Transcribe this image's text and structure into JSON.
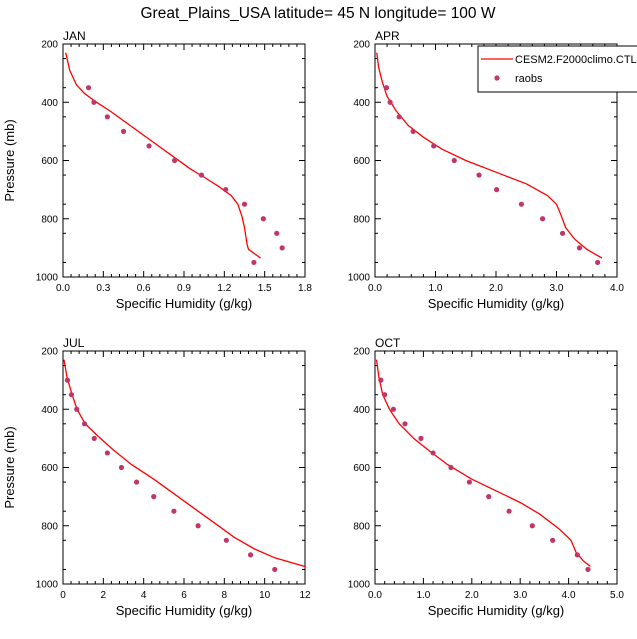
{
  "figure_title": "Great_Plains_USA  latitude= 45 N longitude= 100 W",
  "colors": {
    "model": "#ff0000",
    "obs": "#c0366a",
    "axes": "#000000"
  },
  "chart_data": [
    {
      "type": "line+scatter",
      "title": "JAN",
      "xlabel": "Specific Humidity (g/kg)",
      "ylabel": "Pressure (mb)",
      "xlim": [
        0,
        1.8
      ],
      "ylim": [
        1000,
        200
      ],
      "xticks": [
        "0.0",
        "0.3",
        "0.6",
        "0.9",
        "1.2",
        "1.5",
        "1.8"
      ],
      "yticks": [
        "200",
        "400",
        "600",
        "800",
        "1000"
      ],
      "legend": null,
      "series": [
        {
          "name": "CESM2.F2000climo.CTL",
          "kind": "line",
          "x": [
            0.02,
            0.05,
            0.1,
            0.16,
            0.25,
            0.35,
            0.5,
            0.65,
            0.8,
            0.95,
            1.06,
            1.16,
            1.25,
            1.3,
            1.33,
            1.35,
            1.36,
            1.37,
            1.38,
            1.47
          ],
          "y": [
            230,
            290,
            340,
            370,
            400,
            430,
            480,
            530,
            580,
            630,
            660,
            690,
            720,
            750,
            790,
            830,
            860,
            890,
            905,
            935
          ]
        },
        {
          "name": "raobs",
          "kind": "scatter",
          "x": [
            0.19,
            0.23,
            0.33,
            0.45,
            0.64,
            0.83,
            1.03,
            1.21,
            1.35,
            1.49,
            1.59,
            1.63,
            1.42
          ],
          "y": [
            350,
            400,
            450,
            500,
            550,
            600,
            650,
            700,
            750,
            800,
            850,
            900,
            950
          ]
        }
      ]
    },
    {
      "type": "line+scatter",
      "title": "APR",
      "xlabel": "Specific Humidity (g/kg)",
      "ylabel": "",
      "xlim": [
        0,
        4.0
      ],
      "ylim": [
        1000,
        200
      ],
      "xticks": [
        "0.0",
        "1.0",
        "2.0",
        "3.0",
        "4.0"
      ],
      "yticks": [
        "200",
        "400",
        "600",
        "800",
        "1000"
      ],
      "legend": {
        "position": "top-right",
        "entries": [
          "CESM2.F2000climo.CTL",
          "raobs"
        ]
      },
      "series": [
        {
          "name": "CESM2.F2000climo.CTL",
          "kind": "line",
          "x": [
            0.03,
            0.06,
            0.12,
            0.2,
            0.35,
            0.55,
            0.8,
            1.1,
            1.5,
            2.0,
            2.5,
            2.85,
            3.0,
            3.08,
            3.15,
            3.3,
            3.5,
            3.75
          ],
          "y": [
            230,
            280,
            330,
            380,
            430,
            480,
            520,
            560,
            600,
            640,
            680,
            720,
            750,
            790,
            830,
            870,
            905,
            935
          ]
        },
        {
          "name": "raobs",
          "kind": "scatter",
          "x": [
            0.19,
            0.25,
            0.4,
            0.63,
            0.97,
            1.31,
            1.72,
            2.01,
            2.42,
            2.77,
            3.1,
            3.38,
            3.68
          ],
          "y": [
            350,
            400,
            450,
            500,
            550,
            600,
            650,
            700,
            750,
            800,
            850,
            900,
            950
          ]
        }
      ]
    },
    {
      "type": "line+scatter",
      "title": "JUL",
      "xlabel": "Specific Humidity (g/kg)",
      "ylabel": "Pressure (mb)",
      "xlim": [
        0,
        12
      ],
      "ylim": [
        1000,
        200
      ],
      "xticks": [
        "0",
        "2",
        "4",
        "6",
        "8",
        "10",
        "12"
      ],
      "yticks": [
        "200",
        "400",
        "600",
        "800",
        "1000"
      ],
      "legend": null,
      "series": [
        {
          "name": "CESM2.F2000climo.CTL",
          "kind": "line",
          "x": [
            0.05,
            0.2,
            0.45,
            0.7,
            1.1,
            1.7,
            2.5,
            3.4,
            4.5,
            5.5,
            6.5,
            7.5,
            8.5,
            9.5,
            10.5,
            11.5,
            12
          ],
          "y": [
            230,
            290,
            350,
            400,
            450,
            490,
            540,
            590,
            640,
            690,
            740,
            790,
            840,
            880,
            910,
            930,
            940
          ]
        },
        {
          "name": "raobs",
          "kind": "scatter",
          "x": [
            0.22,
            0.42,
            0.68,
            1.07,
            1.55,
            2.2,
            2.9,
            3.65,
            4.5,
            5.5,
            6.7,
            8.1,
            9.3,
            10.5
          ],
          "y": [
            300,
            350,
            400,
            450,
            500,
            550,
            600,
            650,
            700,
            750,
            800,
            850,
            900,
            950
          ]
        }
      ]
    },
    {
      "type": "line+scatter",
      "title": "OCT",
      "xlabel": "Specific Humidity (g/kg)",
      "ylabel": "",
      "xlim": [
        0,
        5.0
      ],
      "ylim": [
        1000,
        200
      ],
      "xticks": [
        "0.0",
        "1.0",
        "2.0",
        "3.0",
        "4.0",
        "5.0"
      ],
      "yticks": [
        "200",
        "400",
        "600",
        "800",
        "1000"
      ],
      "legend": null,
      "series": [
        {
          "name": "CESM2.F2000climo.CTL",
          "kind": "line",
          "x": [
            0.03,
            0.08,
            0.16,
            0.3,
            0.5,
            0.8,
            1.1,
            1.5,
            2.0,
            2.5,
            3.0,
            3.4,
            3.8,
            4.05,
            4.15,
            4.3,
            4.45
          ],
          "y": [
            230,
            290,
            350,
            400,
            450,
            500,
            540,
            590,
            640,
            680,
            720,
            760,
            810,
            850,
            890,
            920,
            940
          ]
        },
        {
          "name": "raobs",
          "kind": "scatter",
          "x": [
            0.12,
            0.2,
            0.38,
            0.62,
            0.95,
            1.2,
            1.57,
            1.95,
            2.35,
            2.77,
            3.25,
            3.67,
            4.18,
            4.4
          ],
          "y": [
            300,
            350,
            400,
            450,
            500,
            550,
            600,
            650,
            700,
            750,
            800,
            850,
            900,
            950
          ]
        }
      ]
    }
  ]
}
